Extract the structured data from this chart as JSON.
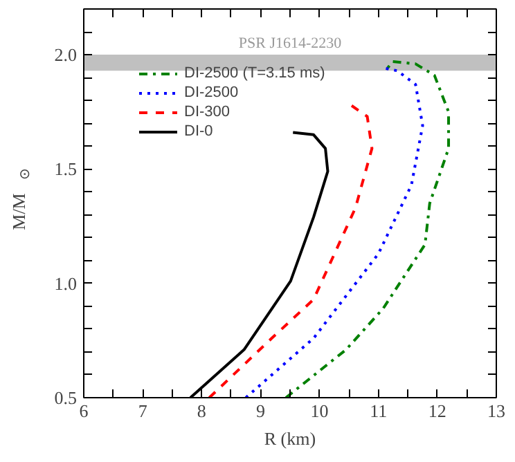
{
  "chart_data": {
    "type": "line",
    "xlabel": "R (km)",
    "ylabel": "M/M$_{⊙}$",
    "xlim": [
      6,
      13
    ],
    "ylim": [
      0.5,
      2.2
    ],
    "xticks": [
      6,
      {
        "value": 6.5,
        "label": null
      },
      7,
      {
        "value": 7.5,
        "label": null
      },
      8,
      {
        "value": 8.5,
        "label": null
      },
      9,
      {
        "value": 9.5,
        "label": null
      },
      10,
      {
        "value": 10.5,
        "label": null
      },
      11,
      {
        "value": 11.5,
        "label": null
      },
      12,
      {
        "value": 12.5,
        "label": null
      },
      13
    ],
    "yticks": [
      {
        "value": 0.5,
        "label": "0.5"
      },
      {
        "value": 0.6,
        "label": null
      },
      {
        "value": 0.7,
        "label": null
      },
      {
        "value": 0.8,
        "label": null
      },
      {
        "value": 0.9,
        "label": null
      },
      {
        "value": 1.0,
        "label": "1.0"
      },
      {
        "value": 1.1,
        "label": null
      },
      {
        "value": 1.2,
        "label": null
      },
      {
        "value": 1.3,
        "label": null
      },
      {
        "value": 1.4,
        "label": null
      },
      {
        "value": 1.5,
        "label": "1.5"
      },
      {
        "value": 1.6,
        "label": null
      },
      {
        "value": 1.7,
        "label": null
      },
      {
        "value": 1.8,
        "label": null
      },
      {
        "value": 1.9,
        "label": null
      },
      {
        "value": 2.0,
        "label": "2.0"
      },
      {
        "value": 2.1,
        "label": null
      }
    ],
    "bands": [
      {
        "axis": "y",
        "from": 1.93,
        "to": 2.0,
        "label": "PSR J1614-2230",
        "color": "#c0c0c0"
      }
    ],
    "legend": "top left",
    "grid": false,
    "series": [
      {
        "name": "DI-2500 (T=3.15 ms)",
        "color": "#008000",
        "line_style": "dashdot",
        "x": [
          9.43,
          10.45,
          11.08,
          11.79,
          11.87,
          12.19,
          12.19,
          11.95,
          11.63,
          11.24,
          11.12
        ],
        "values": [
          0.5,
          0.71,
          0.89,
          1.17,
          1.35,
          1.59,
          1.75,
          1.91,
          1.96,
          1.97,
          1.93
        ]
      },
      {
        "name": "DI-2500",
        "color": "#0000ff",
        "line_style": "dotted",
        "x": [
          8.75,
          9.9,
          11.0,
          11.56,
          11.75,
          11.63,
          11.32,
          11.12
        ],
        "values": [
          0.5,
          0.76,
          1.13,
          1.43,
          1.69,
          1.87,
          1.93,
          1.94
        ]
      },
      {
        "name": "DI-300",
        "color": "#ff0000",
        "line_style": "dashed",
        "x": [
          8.13,
          9.19,
          9.9,
          10.61,
          10.89,
          10.81,
          10.53
        ],
        "values": [
          0.5,
          0.76,
          0.93,
          1.33,
          1.59,
          1.73,
          1.78
        ]
      },
      {
        "name": "DI-0",
        "color": "#000000",
        "line_style": "solid",
        "x": [
          7.81,
          8.72,
          9.51,
          9.9,
          10.14,
          10.1,
          9.9,
          9.55
        ],
        "values": [
          0.5,
          0.71,
          1.01,
          1.29,
          1.49,
          1.59,
          1.65,
          1.66
        ]
      }
    ]
  }
}
